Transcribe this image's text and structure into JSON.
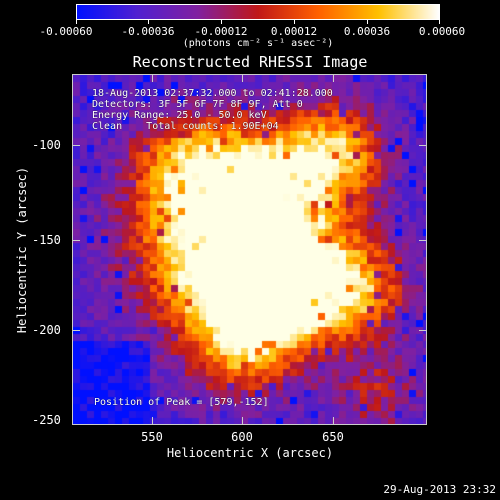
{
  "colorbar": {
    "labels": [
      "-0.00060",
      "-0.00036",
      "-0.00012",
      "0.00012",
      "0.00036",
      "0.00060"
    ],
    "unit": "(photons cm⁻² s⁻¹ asec⁻²)",
    "colors": [
      "#0010ff",
      "#5020d0",
      "#8020a0",
      "#c01818",
      "#ff6000",
      "#ffc000",
      "#ffffff"
    ]
  },
  "title": "Reconstructed RHESSI Image",
  "info": {
    "line1": "18-Aug-2013 02:37:32.000 to 02:41:28.000",
    "line2": "Detectors: 3F 5F 6F 7F 8F 9F, Att 0",
    "line3": "Energy Range: 25.0 - 50.0 keV",
    "line4": "Clean    Total counts: 1.90E+04",
    "peak": "Position of Peak = [579,-152]"
  },
  "axes": {
    "xlabel": "Heliocentric X (arcsec)",
    "ylabel": "Heliocentric Y (arcsec)",
    "xticks": [
      "550",
      "600",
      "650"
    ],
    "yticks": [
      "-100",
      "-150",
      "-200",
      "-250"
    ]
  },
  "timestamp": "29-Aug-2013 23:32"
}
